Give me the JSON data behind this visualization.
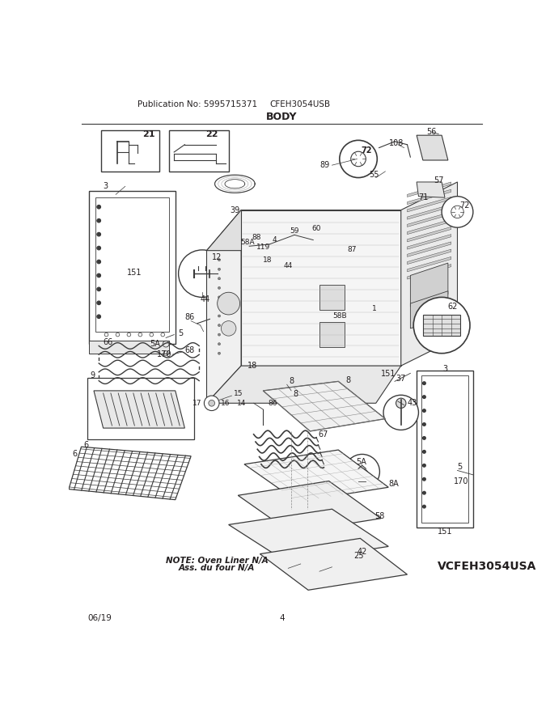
{
  "title": "BODY",
  "pub_no": "Publication No: 5995715371",
  "model": "CFEH3054USB",
  "date": "06/19",
  "page": "4",
  "note_line1": "NOTE: Oven Liner N/A",
  "note_line2": "Ass. du four N/A",
  "model_bottom": "VCFEH3054USA",
  "bg_color": "#ffffff",
  "text_color": "#231f20",
  "line_color": "#3a3a3a"
}
